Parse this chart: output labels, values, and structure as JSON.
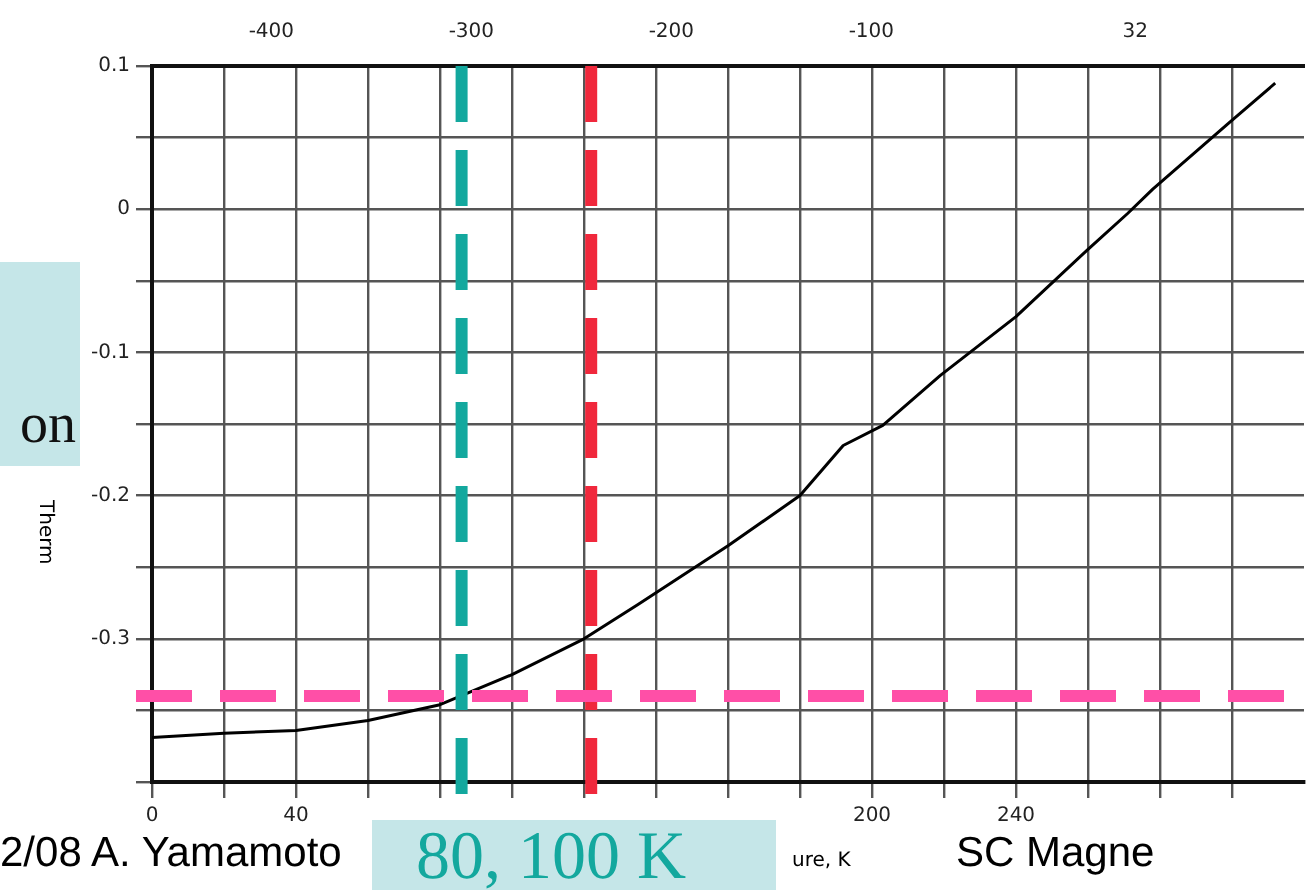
{
  "chart_data": {
    "type": "line",
    "xlabel": "ure, K",
    "ylabel": "Therm",
    "x": [
      0,
      20,
      40,
      60,
      80,
      100,
      120,
      135,
      160,
      180,
      192,
      203,
      219,
      240,
      260,
      271,
      278,
      299,
      312
    ],
    "series": [
      {
        "color": "#000000",
        "values": [
          -0.369,
          -0.366,
          -0.364,
          -0.357,
          -0.346,
          -0.325,
          -0.3,
          -0.276,
          -0.235,
          -0.2,
          -0.165,
          -0.151,
          -0.116,
          -0.075,
          -0.028,
          -0.003,
          0.014,
          0.06,
          0.088
        ]
      }
    ],
    "xlim": [
      0,
      320
    ],
    "xticks": [
      0,
      {
        "value": 20,
        "label": null
      },
      40,
      {
        "value": 60,
        "label": null
      },
      {
        "value": 80,
        "label": null
      },
      {
        "value": 100,
        "label": null
      },
      {
        "value": 120,
        "label": null
      },
      {
        "value": 140,
        "label": null
      },
      {
        "value": 160,
        "label": null
      },
      {
        "value": 180,
        "label": null
      },
      200,
      {
        "value": 220,
        "label": null
      },
      240,
      {
        "value": 260,
        "label": null
      },
      {
        "value": 280,
        "label": null
      },
      {
        "value": 300,
        "label": null
      }
    ],
    "x2lim": [
      -459.67,
      116.33
    ],
    "x2ticks": [
      -400,
      -300,
      -200,
      -100,
      32
    ],
    "ylim": [
      -0.4,
      0.1
    ],
    "yticks": [
      {
        "value": -0.4,
        "label": null
      },
      {
        "value": -0.35,
        "label": null
      },
      -0.3,
      {
        "value": -0.25,
        "label": null
      },
      -0.2,
      {
        "value": -0.15,
        "label": null
      },
      -0.1,
      {
        "value": -0.05,
        "label": null
      },
      0,
      {
        "value": 0.05,
        "label": null
      },
      0.1
    ],
    "ref_lines": [
      {
        "axis": "x",
        "value": 86,
        "color": "#13a89e",
        "line_style": "dashed"
      },
      {
        "axis": "x",
        "value": 122,
        "color": "#f0283c",
        "line_style": "dashed"
      },
      {
        "axis": "y",
        "value": -0.34,
        "color": "#ff4fa7",
        "line_style": "dashed"
      }
    ],
    "annotations": [
      "on",
      "2/08 A. Yamamoto",
      "SC Magne",
      "80, 100 K"
    ],
    "grid": true,
    "marker": "none",
    "line_style": "solid",
    "legend": false
  }
}
